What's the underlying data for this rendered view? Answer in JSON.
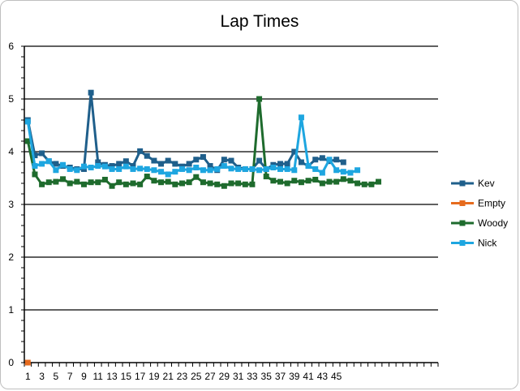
{
  "chart_data": {
    "type": "line",
    "title": "Lap Times",
    "xlabel": "",
    "ylabel": "",
    "ylim": [
      0,
      6
    ],
    "yticks": [
      "0",
      "1",
      "2",
      "3",
      "4",
      "5",
      "6"
    ],
    "xticks": [
      "1",
      "3",
      "5",
      "7",
      "9",
      "11",
      "13",
      "15",
      "17",
      "19",
      "21",
      "23",
      "25",
      "27",
      "29",
      "31",
      "33",
      "35",
      "37",
      "39",
      "41",
      "43",
      "45"
    ],
    "x_categories": 59,
    "grid": true,
    "legend_position": "right",
    "series": [
      {
        "name": "Kev",
        "color": "#1f5f8b",
        "values": [
          4.6,
          3.93,
          3.97,
          3.82,
          3.77,
          3.73,
          3.7,
          3.67,
          3.67,
          5.12,
          3.8,
          3.75,
          3.73,
          3.77,
          3.82,
          3.73,
          4.01,
          3.92,
          3.83,
          3.77,
          3.83,
          3.77,
          3.72,
          3.77,
          3.85,
          3.9,
          3.73,
          3.65,
          3.85,
          3.83,
          3.7,
          3.67,
          3.67,
          3.83,
          3.67,
          3.75,
          3.77,
          3.77,
          4.0,
          3.8,
          3.73,
          3.85,
          3.88,
          3.82,
          3.85,
          3.8
        ]
      },
      {
        "name": "Empty",
        "color": "#e66b1e",
        "values": [
          0
        ]
      },
      {
        "name": "Woody",
        "color": "#1e6b2d",
        "values": [
          4.2,
          3.57,
          3.38,
          3.42,
          3.43,
          3.48,
          3.4,
          3.43,
          3.38,
          3.42,
          3.42,
          3.47,
          3.35,
          3.42,
          3.38,
          3.4,
          3.38,
          3.53,
          3.45,
          3.42,
          3.43,
          3.38,
          3.4,
          3.42,
          3.52,
          3.42,
          3.4,
          3.38,
          3.35,
          3.4,
          3.4,
          3.38,
          3.38,
          5.0,
          3.53,
          3.45,
          3.43,
          3.4,
          3.45,
          3.42,
          3.45,
          3.47,
          3.4,
          3.43,
          3.43,
          3.48,
          3.45,
          3.4,
          3.38,
          3.38,
          3.43
        ]
      },
      {
        "name": "Nick",
        "color": "#1ea6e0",
        "values": [
          4.57,
          3.73,
          3.77,
          3.82,
          3.65,
          3.75,
          3.67,
          3.65,
          3.72,
          3.7,
          3.73,
          3.72,
          3.67,
          3.67,
          3.72,
          3.67,
          3.68,
          3.67,
          3.65,
          3.62,
          3.57,
          3.62,
          3.67,
          3.65,
          3.7,
          3.65,
          3.65,
          3.67,
          3.73,
          3.68,
          3.67,
          3.67,
          3.67,
          3.65,
          3.67,
          3.7,
          3.67,
          3.67,
          3.65,
          4.65,
          3.73,
          3.67,
          3.6,
          3.85,
          3.65,
          3.62,
          3.6,
          3.65
        ]
      }
    ]
  }
}
